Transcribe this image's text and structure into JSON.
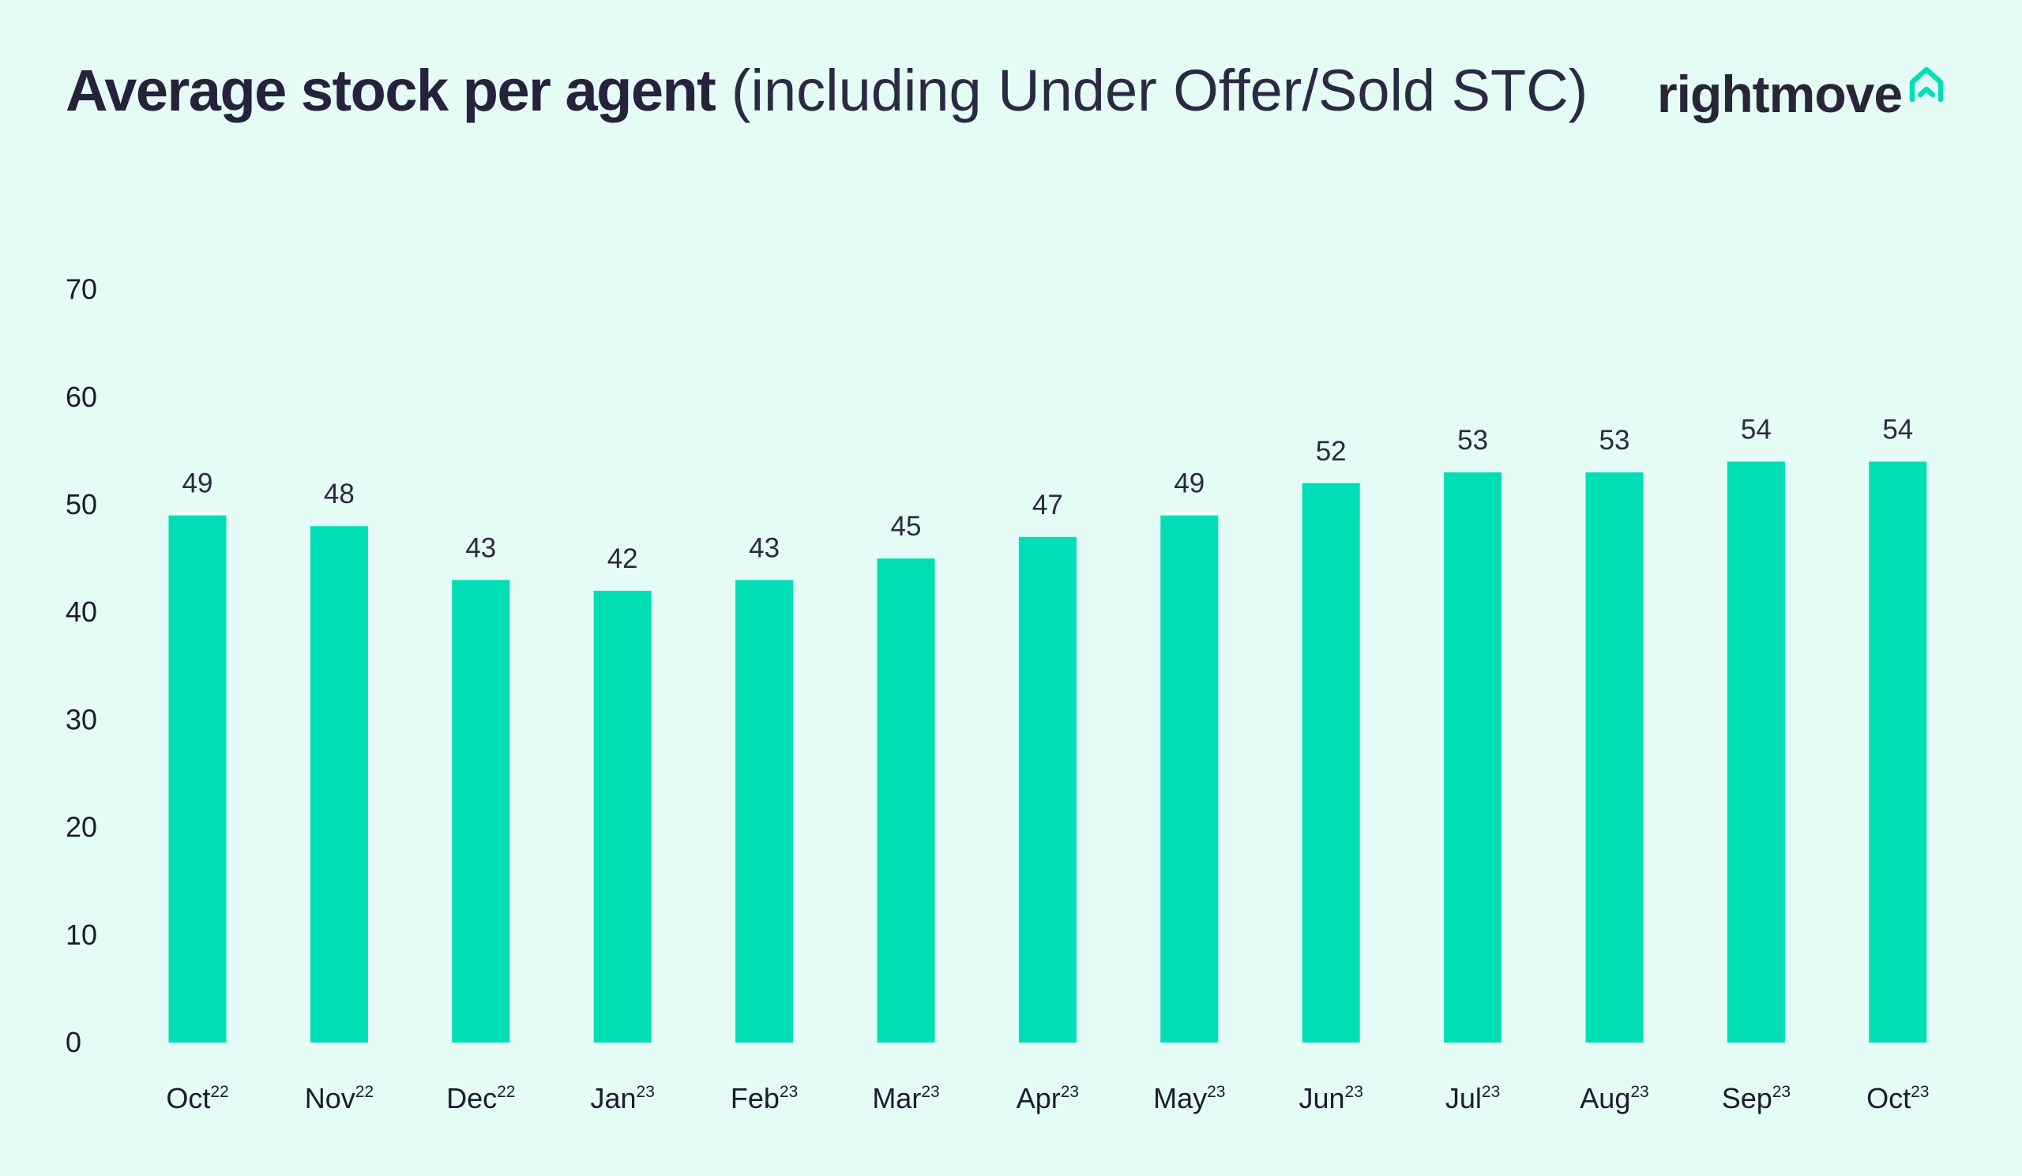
{
  "title": {
    "bold": "Average stock per agent",
    "light": "(including Under Offer/Sold STC)"
  },
  "brand": {
    "name": "rightmove",
    "icon": "house-outline-icon",
    "icon_color": "#00deb6"
  },
  "colors": {
    "background": "#e5fbf5",
    "bar": "#00deb6",
    "text": "#1b1b2f"
  },
  "chart_data": {
    "type": "bar",
    "title": "Average stock per agent (including Under Offer/Sold STC)",
    "xlabel": "",
    "ylabel": "",
    "ylim": [
      0,
      70
    ],
    "yticks": [
      0,
      10,
      20,
      30,
      40,
      50,
      60,
      70
    ],
    "grid": false,
    "legend": "none",
    "categories": [
      {
        "month": "Oct",
        "year": "22"
      },
      {
        "month": "Nov",
        "year": "22"
      },
      {
        "month": "Dec",
        "year": "22"
      },
      {
        "month": "Jan",
        "year": "23"
      },
      {
        "month": "Feb",
        "year": "23"
      },
      {
        "month": "Mar",
        "year": "23"
      },
      {
        "month": "Apr",
        "year": "23"
      },
      {
        "month": "May",
        "year": "23"
      },
      {
        "month": "Jun",
        "year": "23"
      },
      {
        "month": "Jul",
        "year": "23"
      },
      {
        "month": "Aug",
        "year": "23"
      },
      {
        "month": "Sep",
        "year": "23"
      },
      {
        "month": "Oct",
        "year": "23"
      }
    ],
    "values": [
      49,
      48,
      43,
      42,
      43,
      45,
      47,
      49,
      52,
      53,
      53,
      54,
      54
    ]
  }
}
